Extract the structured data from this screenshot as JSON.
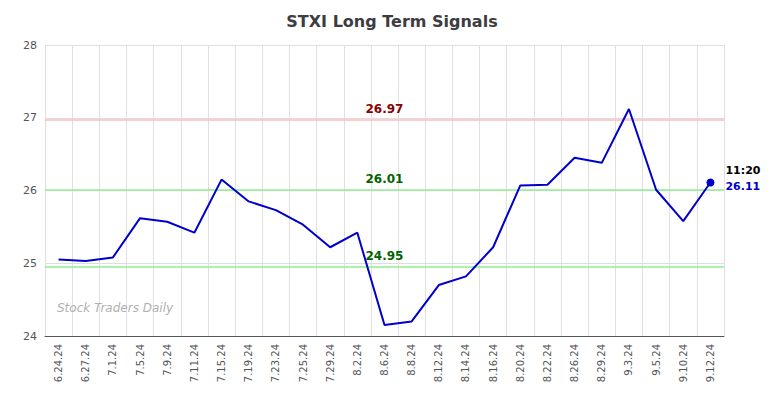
{
  "chart_data": {
    "type": "line",
    "title": "STXI Long Term Signals",
    "categories": [
      "6.24.24",
      "6.27.24",
      "7.1.24",
      "7.5.24",
      "7.9.24",
      "7.11.24",
      "7.15.24",
      "7.19.24",
      "7.23.24",
      "7.25.24",
      "7.29.24",
      "8.2.24",
      "8.6.24",
      "8.8.24",
      "8.12.24",
      "8.14.24",
      "8.16.24",
      "8.20.24",
      "8.22.24",
      "8.26.24",
      "8.29.24",
      "9.3.24",
      "9.5.24",
      "9.10.24",
      "9.12.24"
    ],
    "values": [
      25.05,
      25.03,
      25.08,
      25.62,
      25.57,
      25.42,
      26.15,
      25.85,
      25.73,
      25.53,
      25.22,
      25.42,
      24.15,
      24.2,
      24.7,
      24.82,
      25.22,
      26.07,
      26.08,
      26.45,
      26.38,
      27.12,
      26.01,
      25.58,
      26.11
    ],
    "color": "#0000cc",
    "ylim": [
      24,
      28
    ],
    "yticks": [
      24,
      25,
      26,
      27,
      28
    ],
    "grid": true,
    "reference_lines": [
      {
        "value": 26.97,
        "label": "26.97",
        "color": "#ffbbbb",
        "label_color": "#8b0000"
      },
      {
        "value": 26.01,
        "label": "26.01",
        "color": "#90ee90",
        "label_color": "#006400"
      },
      {
        "value": 24.95,
        "label": "24.95",
        "color": "#90ee90",
        "label_color": "#006400"
      }
    ],
    "last_point_annotations": [
      {
        "text": "11:20",
        "color": "#000000"
      },
      {
        "text": "26.11",
        "color": "#0000cc"
      }
    ],
    "watermark": "Stock Traders Daily"
  }
}
